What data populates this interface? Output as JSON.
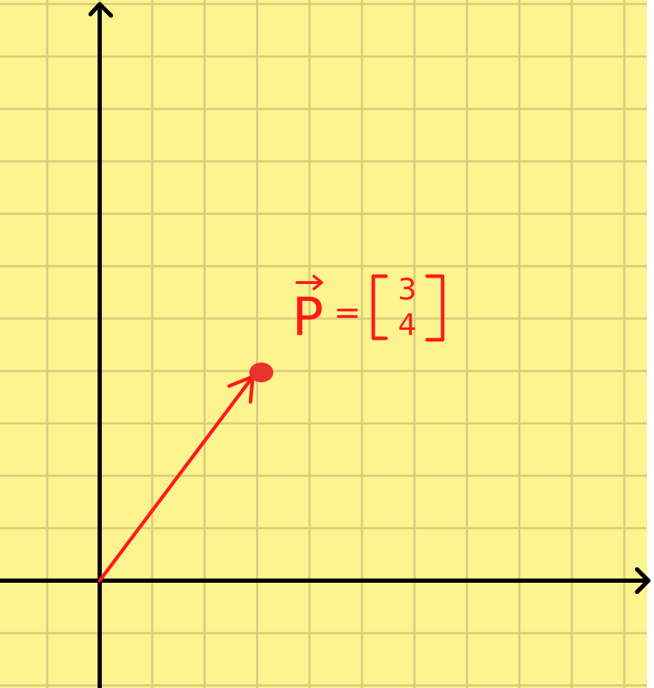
{
  "colors": {
    "paper": "#fdf38f",
    "grid": "#d7cd7c",
    "axis": "#000000",
    "ink": "#ff1a1a",
    "point": "#e8342c"
  },
  "grid": {
    "spacing_units": 1,
    "x_range": [
      -2,
      10.5
    ],
    "y_range": [
      -2,
      11
    ]
  },
  "vector": {
    "name": "p",
    "components": [
      3,
      4
    ],
    "label": {
      "symbol": "P",
      "equals": "=",
      "top": "3",
      "bottom": "4"
    }
  }
}
